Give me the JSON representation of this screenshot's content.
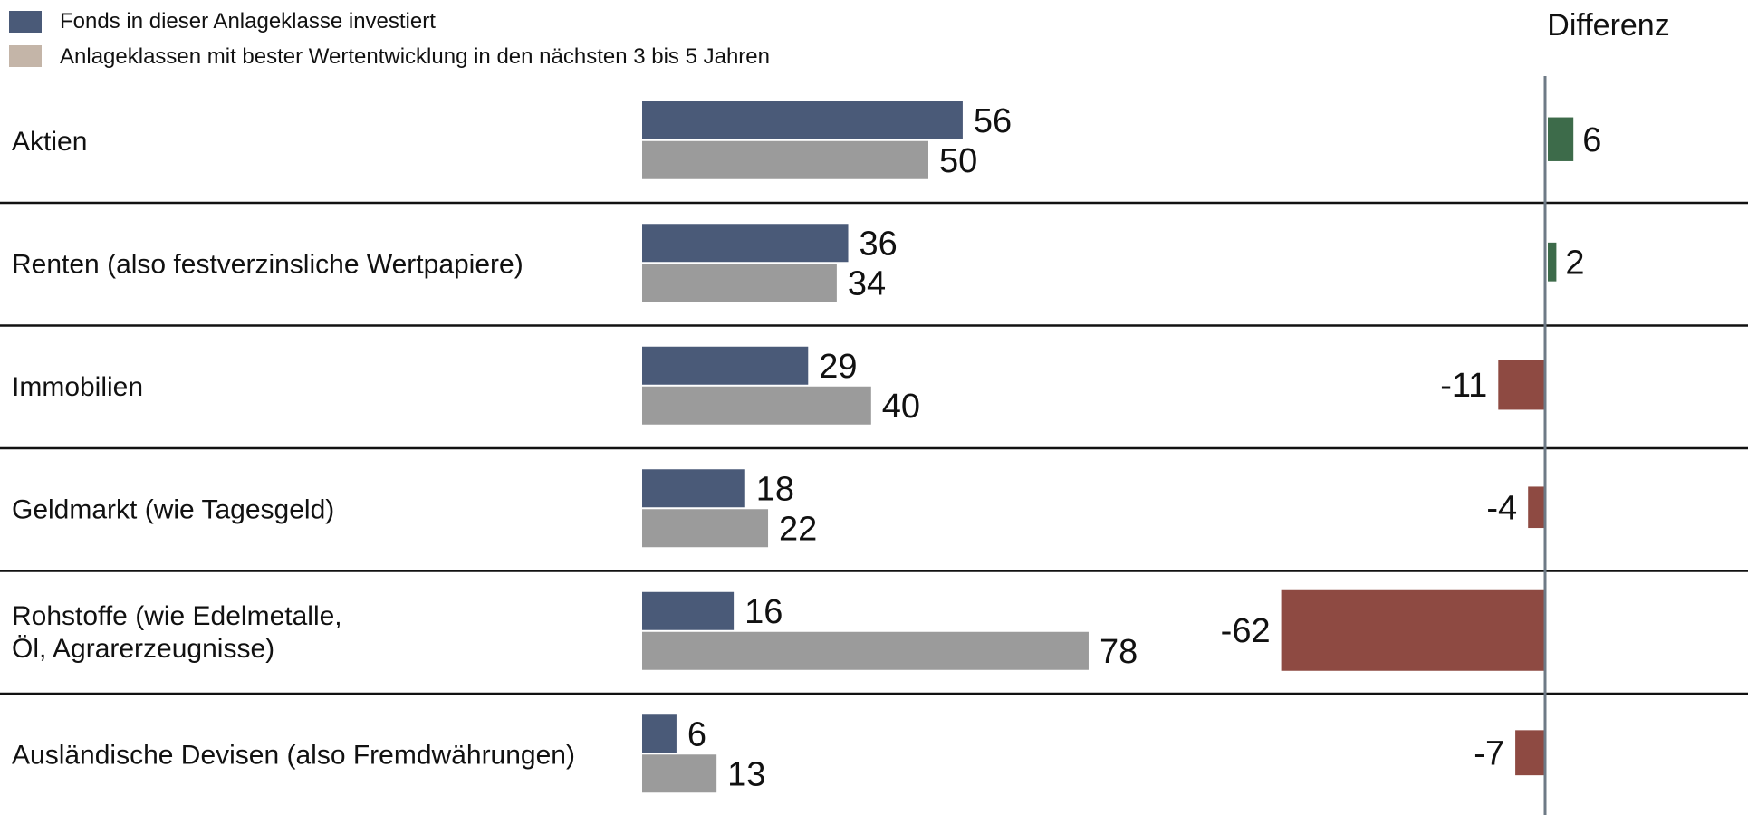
{
  "colors": {
    "fonds": "#4a5a78",
    "anlage_legend": "#c4b5a8",
    "anlage_bar": "#9b9b9b",
    "diff_positive": "#3d6b4a",
    "diff_negative": "#8e4a42",
    "separator": "#111111",
    "zero_axis": "#6e7a86"
  },
  "legend": [
    {
      "label": "Fonds in dieser Anlageklasse investiert",
      "color_key": "fonds"
    },
    {
      "label": "Anlageklassen mit bester Wertentwicklung in den nächsten 3 bis 5 Jahren",
      "color_key": "anlage_legend"
    }
  ],
  "chart_data": {
    "type": "bar",
    "orientation": "horizontal",
    "categories": [
      [
        "Aktien"
      ],
      [
        "Renten (also festverzinsliche Wertpapiere)"
      ],
      [
        "Immobilien"
      ],
      [
        "Geldmarkt (wie Tagesgeld)"
      ],
      [
        "Rohstoffe (wie Edelmetalle,",
        "Öl, Agrarerzeugnisse)"
      ],
      [
        "Ausländische Devisen (also Fremdwährungen)"
      ]
    ],
    "series": [
      {
        "name": "Fonds in dieser Anlageklasse investiert",
        "values": [
          56,
          36,
          29,
          18,
          16,
          6
        ]
      },
      {
        "name": "Anlageklassen mit bester Wertentwicklung in den nächsten 3 bis 5 Jahren",
        "values": [
          50,
          34,
          40,
          22,
          78,
          13
        ]
      }
    ],
    "difference": {
      "title": "Differenz",
      "values": [
        6,
        2,
        -11,
        -4,
        -62,
        -7
      ]
    }
  }
}
